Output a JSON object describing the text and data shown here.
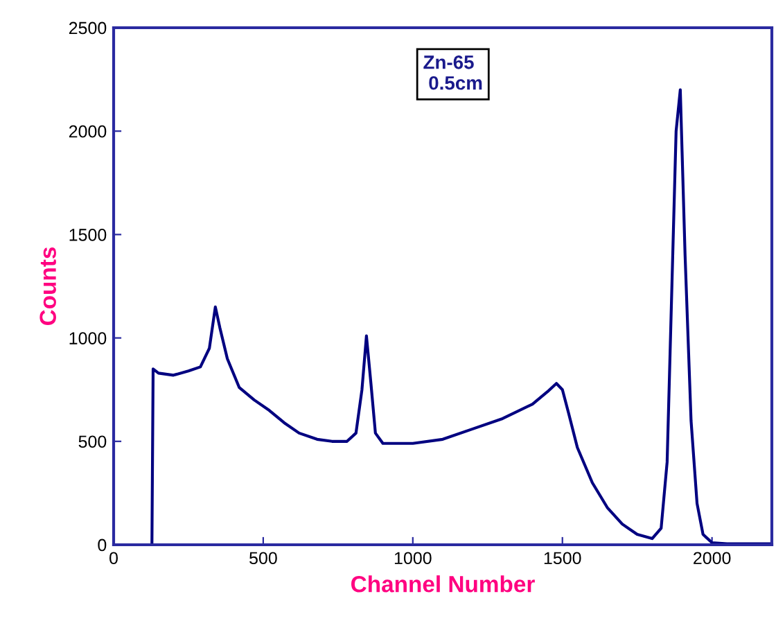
{
  "chart_data": {
    "type": "line",
    "xlabel": "Channel Number",
    "ylabel": "Counts",
    "annotations": [
      "Zn-65\n 0.5cm"
    ],
    "x": [
      128,
      132,
      150,
      200,
      250,
      290,
      320,
      340,
      355,
      380,
      420,
      470,
      520,
      570,
      620,
      680,
      730,
      780,
      810,
      830,
      845,
      860,
      875,
      900,
      1000,
      1100,
      1200,
      1300,
      1400,
      1450,
      1480,
      1500,
      1520,
      1550,
      1600,
      1650,
      1700,
      1750,
      1800,
      1830,
      1850,
      1865,
      1880,
      1894,
      1900,
      1910,
      1930,
      1950,
      1970,
      2000,
      2050,
      2200
    ],
    "series": [
      {
        "color": "#000080",
        "values": [
          0,
          850,
          830,
          820,
          840,
          860,
          950,
          1150,
          1050,
          900,
          760,
          700,
          650,
          590,
          540,
          510,
          500,
          500,
          540,
          750,
          1010,
          780,
          540,
          490,
          490,
          510,
          560,
          610,
          680,
          740,
          780,
          750,
          640,
          470,
          300,
          180,
          100,
          50,
          30,
          80,
          400,
          1200,
          2000,
          2200,
          1900,
          1400,
          600,
          200,
          50,
          10,
          5,
          5
        ]
      }
    ],
    "xlim": [
      0,
      2200
    ],
    "ylim": [
      0,
      2500
    ],
    "xticks": [
      0,
      500,
      1000,
      1500,
      2000
    ],
    "yticks": [
      0,
      500,
      1000,
      1500,
      2000,
      2500
    ],
    "grid": false,
    "marker": "none",
    "line_style": "solid"
  }
}
